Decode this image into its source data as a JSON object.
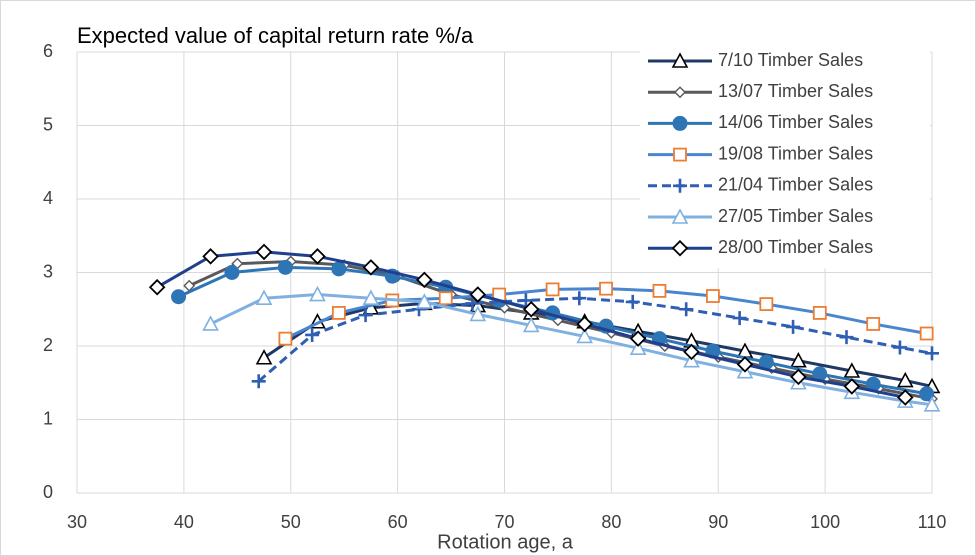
{
  "chart_data": {
    "type": "line",
    "title": "Expected value of capital return rate  %/a",
    "x_label": "Rotation age, a",
    "xlim": [
      30,
      110
    ],
    "xticks": [
      30,
      40,
      50,
      60,
      70,
      80,
      90,
      100,
      110
    ],
    "ylim": [
      0,
      6
    ],
    "yticks": [
      0,
      1,
      2,
      3,
      4,
      5,
      6
    ],
    "grid": true,
    "legend": "upper right",
    "series": [
      {
        "name": "7/10 Timber Sales",
        "color": "#1f3864",
        "marker": "triangle-open",
        "marker_color": "#000000",
        "dash": false,
        "x": [
          47.5,
          52.5,
          57.5,
          62.5,
          67.5,
          72.5,
          77.5,
          82.5,
          87.5,
          92.5,
          97.5,
          102.5,
          107.5,
          110
        ],
        "values": [
          1.84,
          2.33,
          2.52,
          2.58,
          2.55,
          2.45,
          2.33,
          2.2,
          2.07,
          1.93,
          1.8,
          1.66,
          1.53,
          1.45
        ]
      },
      {
        "name": "13/07 Timber Sales",
        "color": "#595959",
        "marker": "diamond-small",
        "marker_color": "#595959",
        "dash": false,
        "x": [
          40.5,
          45,
          50,
          55,
          60,
          65,
          70,
          75,
          80,
          85,
          90,
          95,
          100,
          105,
          110
        ],
        "values": [
          2.82,
          3.12,
          3.15,
          3.1,
          2.95,
          2.7,
          2.52,
          2.35,
          2.18,
          2.0,
          1.85,
          1.7,
          1.55,
          1.42,
          1.28
        ]
      },
      {
        "name": "14/06 Timber Sales",
        "color": "#2e75b6",
        "marker": "circle",
        "marker_color": "#2e75b6",
        "dash": false,
        "x": [
          39.5,
          44.5,
          49.5,
          54.5,
          59.5,
          64.5,
          69.5,
          74.5,
          79.5,
          84.5,
          89.5,
          94.5,
          99.5,
          104.5,
          109.5
        ],
        "values": [
          2.67,
          3.0,
          3.07,
          3.05,
          2.95,
          2.8,
          2.62,
          2.45,
          2.27,
          2.1,
          1.93,
          1.78,
          1.62,
          1.48,
          1.35
        ]
      },
      {
        "name": "19/08 Timber Sales",
        "color": "#4a86d0",
        "marker": "square-open",
        "marker_color": "#ed7d31",
        "dash": false,
        "x": [
          49.5,
          54.5,
          59.5,
          64.5,
          69.5,
          74.5,
          79.5,
          84.5,
          89.5,
          94.5,
          99.5,
          104.5,
          109.5
        ],
        "values": [
          2.1,
          2.45,
          2.62,
          2.65,
          2.7,
          2.77,
          2.78,
          2.75,
          2.68,
          2.57,
          2.45,
          2.3,
          2.17
        ]
      },
      {
        "name": "21/04 Timber Sales",
        "color": "#2f5fb3",
        "marker": "plus",
        "marker_color": "#2f5fb3",
        "dash": true,
        "x": [
          47,
          52,
          57,
          62,
          67,
          72,
          77,
          82,
          87,
          92,
          97,
          102,
          107,
          110
        ],
        "values": [
          1.52,
          2.15,
          2.42,
          2.5,
          2.58,
          2.62,
          2.65,
          2.6,
          2.5,
          2.38,
          2.26,
          2.12,
          1.98,
          1.9
        ]
      },
      {
        "name": "27/05 Timber Sales",
        "color": "#7fb0e0",
        "marker": "triangle-open",
        "marker_color": "#7fb0e0",
        "dash": false,
        "x": [
          42.5,
          47.5,
          52.5,
          57.5,
          62.5,
          67.5,
          72.5,
          77.5,
          82.5,
          87.5,
          92.5,
          97.5,
          102.5,
          107.5,
          110
        ],
        "values": [
          2.3,
          2.65,
          2.7,
          2.65,
          2.6,
          2.43,
          2.28,
          2.13,
          1.97,
          1.8,
          1.65,
          1.5,
          1.37,
          1.25,
          1.2
        ]
      },
      {
        "name": "28/00 Timber Sales",
        "color": "#203f8c",
        "marker": "diamond-open",
        "marker_color": "#000000",
        "dash": false,
        "x": [
          37.5,
          42.5,
          47.5,
          52.5,
          57.5,
          62.5,
          67.5,
          72.5,
          77.5,
          82.5,
          87.5,
          92.5,
          97.5,
          102.5,
          107.5
        ],
        "values": [
          2.8,
          3.22,
          3.28,
          3.22,
          3.07,
          2.9,
          2.7,
          2.5,
          2.3,
          2.1,
          1.92,
          1.75,
          1.58,
          1.45,
          1.3
        ]
      }
    ]
  }
}
